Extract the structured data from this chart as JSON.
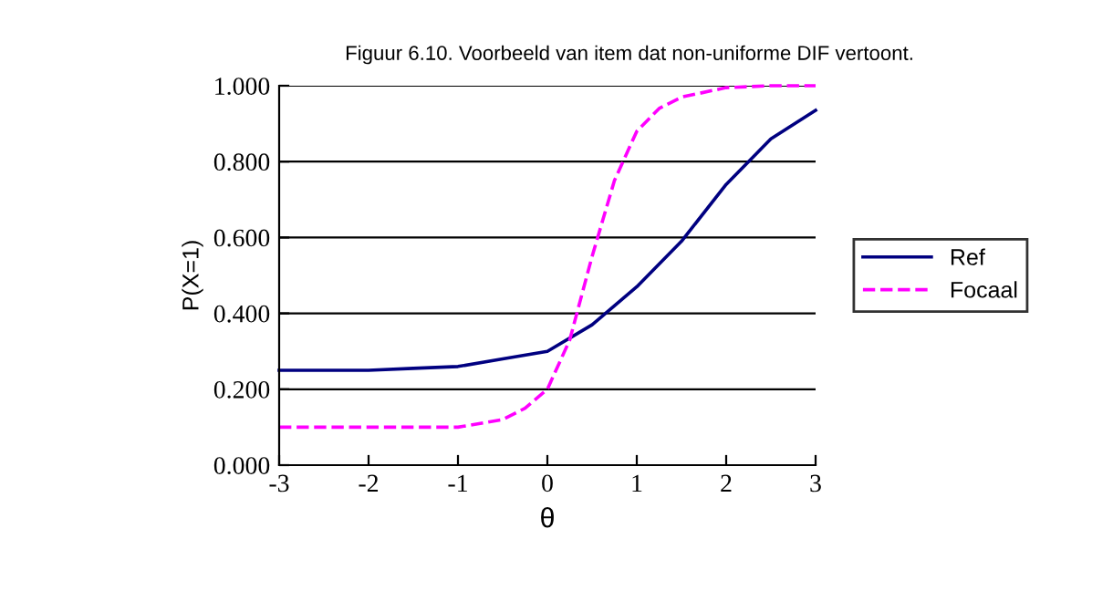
{
  "chart_data": {
    "type": "line",
    "title": "Figuur 6.10. Voorbeeld van item dat non-uniforme DIF vertoont.",
    "xlabel": "θ",
    "ylabel": "P(X=1)",
    "xlim": [
      -3,
      3
    ],
    "xticks": [
      -3,
      -2,
      -1,
      0,
      1,
      2,
      3
    ],
    "ylim": [
      0,
      1
    ],
    "yticks": [
      {
        "value": 0,
        "label": "0.000"
      },
      {
        "value": 0.2,
        "label": "0.200"
      },
      {
        "value": 0.4,
        "label": "0.400"
      },
      {
        "value": 0.6,
        "label": "0.600"
      },
      {
        "value": 0.8,
        "label": "0.800"
      },
      {
        "value": 1,
        "label": "1.000"
      }
    ],
    "grid": "y",
    "legend": "right",
    "marker": "none",
    "series": [
      {
        "name": "Ref",
        "color": "#000080",
        "line_style": "solid",
        "x": [
          -3,
          -2.5,
          -2,
          -1.5,
          -1,
          -0.5,
          0,
          0.5,
          1,
          1.5,
          2,
          2.5,
          3
        ],
        "values": [
          0.25,
          0.25,
          0.25,
          0.255,
          0.26,
          0.28,
          0.3,
          0.37,
          0.47,
          0.59,
          0.74,
          0.86,
          0.935
        ]
      },
      {
        "name": "Focaal",
        "color": "#ff00ff",
        "line_style": "dashed",
        "x": [
          -3,
          -2,
          -1,
          -0.75,
          -0.5,
          -0.25,
          0,
          0.25,
          0.5,
          0.75,
          1,
          1.25,
          1.5,
          2,
          2.5,
          3
        ],
        "values": [
          0.1,
          0.1,
          0.1,
          0.11,
          0.12,
          0.15,
          0.2,
          0.33,
          0.55,
          0.75,
          0.88,
          0.94,
          0.97,
          0.995,
          1.0,
          1.0
        ]
      }
    ]
  }
}
